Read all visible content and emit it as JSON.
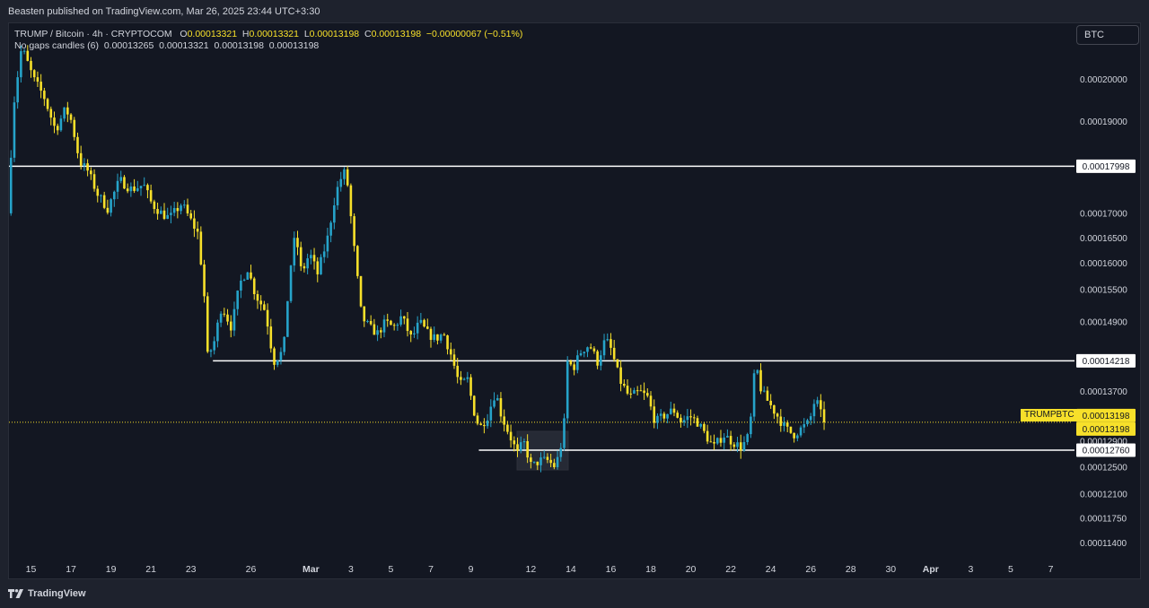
{
  "header": {
    "published": "Beasten published on TradingView.com, Mar 26, 2025 23:44 UTC+3:30"
  },
  "legend": {
    "symbol": "TRUMP / Bitcoin · 4h · CRYPTOCOM",
    "o_label": "O",
    "o": "0.00013321",
    "h_label": "H",
    "h": "0.00013321",
    "l_label": "L",
    "l": "0.00013198",
    "c_label": "C",
    "c": "0.00013198",
    "change": "−0.00000067 (−0.51%)",
    "indicator": "No gaps candles (6)",
    "ind_values": [
      "0.00013265",
      "0.00013321",
      "0.00013198",
      "0.00013198"
    ]
  },
  "badge": {
    "currency": "BTC"
  },
  "footer": {
    "brand": "TradingView"
  },
  "colors": {
    "background": "#131722",
    "up": "#26a3c9",
    "down": "#f7e02a",
    "level_line": "#ffffff",
    "price_line": "#f7e02a"
  },
  "chart_data": {
    "type": "candlestick",
    "symbol": "TRUMPBTC",
    "interval": "4h",
    "y_scale": "log",
    "ylim": [
      0.000112,
      0.000214
    ],
    "y_ticks": [
      "0.00020000",
      "0.00019000",
      "0.00017000",
      "0.00016500",
      "0.00016000",
      "0.00015500",
      "0.00014900",
      "0.00013700",
      "0.00012900",
      "0.00012500",
      "0.00012100",
      "0.00011750",
      "0.00011400"
    ],
    "x_ticks": [
      "15",
      "17",
      "19",
      "21",
      "23",
      "26",
      "Mar",
      "3",
      "5",
      "7",
      "9",
      "12",
      "14",
      "16",
      "18",
      "20",
      "22",
      "24",
      "26",
      "28",
      "30",
      "Apr",
      "3",
      "5",
      "7"
    ],
    "x_tick_days": [
      15,
      17,
      19,
      21,
      23,
      26,
      29,
      31,
      33,
      35,
      37,
      40,
      42,
      44,
      46,
      48,
      50,
      52,
      54,
      56,
      58,
      60,
      62,
      64,
      66
    ],
    "x_range_days": [
      13.9,
      67.1
    ],
    "x_tick_note": "day numbers counted from Feb 0 (Mar 1 = day 29)",
    "last_day": 54.8,
    "levels": [
      {
        "value": "0.00017998",
        "price": 0.00017998,
        "start_day": 13.9
      },
      {
        "value": "0.00014218",
        "price": 0.00014218,
        "start_day": 24.1
      },
      {
        "value": "0.00012760",
        "price": 0.0001276,
        "start_day": 37.4
      }
    ],
    "current_price": {
      "value": "0.00013198",
      "price": 0.00013198
    },
    "ohlc_last": {
      "open": 0.00013321,
      "high": 0.00013321,
      "low": 0.00013198,
      "close": 0.00013198
    },
    "path": [
      [
        14.0,
        0.00017
      ],
      [
        14.3,
        0.000194
      ],
      [
        14.7,
        0.000208
      ],
      [
        15.3,
        0.0002
      ],
      [
        15.8,
        0.000196
      ],
      [
        16.4,
        0.000188
      ],
      [
        16.9,
        0.000193
      ],
      [
        17.2,
        0.00019
      ],
      [
        17.6,
        0.000181
      ],
      [
        18.0,
        0.000179
      ],
      [
        18.5,
        0.000174
      ],
      [
        19.0,
        0.000171
      ],
      [
        19.6,
        0.000177
      ],
      [
        20.2,
        0.000175
      ],
      [
        20.8,
        0.000176
      ],
      [
        21.2,
        0.000172
      ],
      [
        21.7,
        0.00017
      ],
      [
        22.1,
        0.000169
      ],
      [
        22.7,
        0.000172
      ],
      [
        23.1,
        0.000169
      ],
      [
        23.5,
        0.000166
      ],
      [
        23.8,
        0.000156
      ],
      [
        24.0,
        0.000143
      ],
      [
        24.3,
        0.000145
      ],
      [
        24.7,
        0.000152
      ],
      [
        25.2,
        0.000148
      ],
      [
        25.6,
        0.000156
      ],
      [
        26.0,
        0.000159
      ],
      [
        26.4,
        0.000154
      ],
      [
        26.9,
        0.000151
      ],
      [
        27.3,
        0.000142
      ],
      [
        27.8,
        0.000144
      ],
      [
        28.1,
        0.000158
      ],
      [
        28.4,
        0.000166
      ],
      [
        28.7,
        0.000158
      ],
      [
        29.1,
        0.000162
      ],
      [
        29.5,
        0.000158
      ],
      [
        30.0,
        0.000165
      ],
      [
        30.4,
        0.000174
      ],
      [
        30.8,
        0.000179
      ],
      [
        31.0,
        0.000176
      ],
      [
        31.3,
        0.000164
      ],
      [
        31.7,
        0.00015
      ],
      [
        32.1,
        0.000148
      ],
      [
        32.5,
        0.000147
      ],
      [
        32.9,
        0.000149
      ],
      [
        33.3,
        0.000148
      ],
      [
        33.7,
        0.00015
      ],
      [
        34.2,
        0.000146
      ],
      [
        34.6,
        0.000149
      ],
      [
        35.0,
        0.000147
      ],
      [
        35.4,
        0.000146
      ],
      [
        35.8,
        0.000147
      ],
      [
        36.2,
        0.000143
      ],
      [
        36.6,
        0.000138
      ],
      [
        37.0,
        0.000139
      ],
      [
        37.3,
        0.000134
      ],
      [
        37.6,
        0.000131
      ],
      [
        38.0,
        0.000133
      ],
      [
        38.4,
        0.000137
      ],
      [
        38.7,
        0.000133
      ],
      [
        39.1,
        0.00013
      ],
      [
        39.5,
        0.000127
      ],
      [
        39.8,
        0.000129
      ],
      [
        40.2,
        0.000125
      ],
      [
        40.6,
        0.000126
      ],
      [
        41.0,
        0.000126
      ],
      [
        41.4,
        0.000125
      ],
      [
        41.8,
        0.00013
      ],
      [
        42.0,
        0.000142
      ],
      [
        42.3,
        0.000141
      ],
      [
        42.7,
        0.000144
      ],
      [
        43.1,
        0.000145
      ],
      [
        43.5,
        0.000142
      ],
      [
        43.9,
        0.000146
      ],
      [
        44.2,
        0.000144
      ],
      [
        44.6,
        0.000139
      ],
      [
        45.1,
        0.000136
      ],
      [
        45.6,
        0.000137
      ],
      [
        46.0,
        0.000136
      ],
      [
        46.4,
        0.000132
      ],
      [
        46.8,
        0.000133
      ],
      [
        47.3,
        0.000134
      ],
      [
        47.7,
        0.000132
      ],
      [
        48.1,
        0.000133
      ],
      [
        48.5,
        0.000132
      ],
      [
        48.9,
        0.00013
      ],
      [
        49.3,
        0.000128
      ],
      [
        49.8,
        0.00013
      ],
      [
        50.2,
        0.000129
      ],
      [
        50.7,
        0.000128
      ],
      [
        51.1,
        0.00013
      ],
      [
        51.4,
        0.000142
      ],
      [
        51.7,
        0.000137
      ],
      [
        52.1,
        0.000135
      ],
      [
        52.5,
        0.000133
      ],
      [
        52.9,
        0.000131
      ],
      [
        53.3,
        0.00013
      ],
      [
        53.7,
        0.000131
      ],
      [
        54.1,
        0.000132
      ],
      [
        54.4,
        0.000136
      ],
      [
        54.8,
        0.000132
      ]
    ]
  }
}
